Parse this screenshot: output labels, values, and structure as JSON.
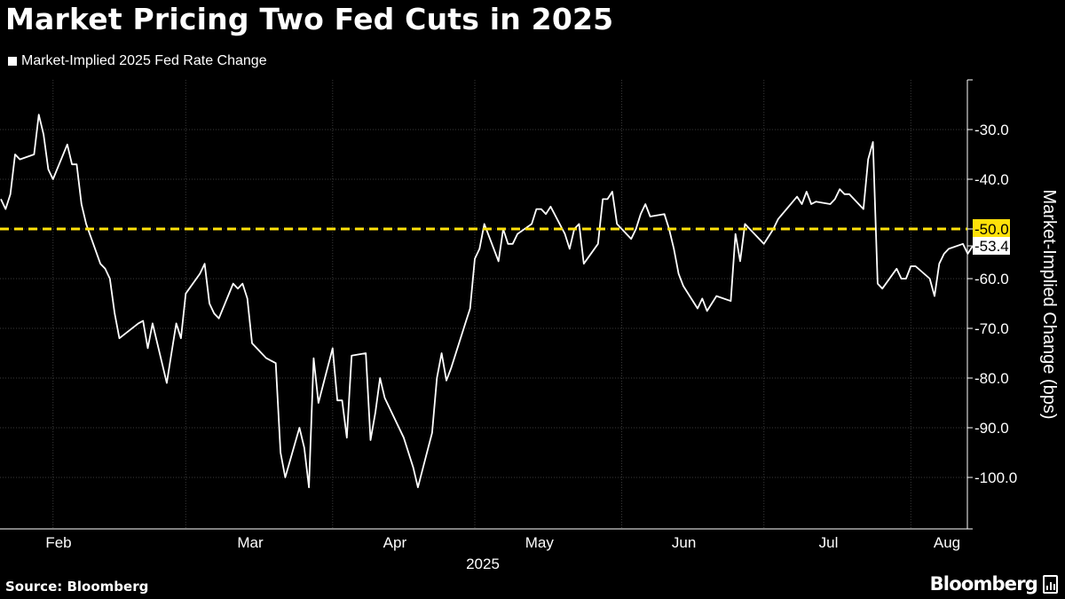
{
  "header": {
    "title": "Market Pricing Two Fed Cuts in 2025",
    "legend_label": "Market-Implied 2025 Fed Rate Change"
  },
  "footer": {
    "source": "Source: Bloomberg",
    "brand": "Bloomberg"
  },
  "colors": {
    "background": "#000000",
    "line": "#ffffff",
    "threshold": "#ffe10a",
    "grid": "#3a3a3a"
  },
  "chart_data": {
    "type": "line",
    "title": "Market Pricing Two Fed Cuts in 2025",
    "ylabel": "Market-Implied Change (bps)",
    "xlabel": "",
    "year_label": "2025",
    "y_axis_position": "right",
    "y_reversed": true,
    "ylim": [
      -20,
      -110
    ],
    "yticks": [
      -30,
      -40,
      -50,
      -60,
      -70,
      -80,
      -90,
      -100
    ],
    "ytick_labels": [
      "-30.0",
      "-40.0",
      "-50.0",
      "-60.0",
      "-70.0",
      "-80.0",
      "-90.0",
      "-100.0"
    ],
    "x_tick_labels": [
      "Feb",
      "Mar",
      "Apr",
      "May",
      "Jun",
      "Jul",
      "Aug"
    ],
    "x_month_boundaries": [
      "2025-01-31",
      "2025-02-28",
      "2025-03-31",
      "2025-04-30",
      "2025-05-31",
      "2025-06-30",
      "2025-07-31"
    ],
    "x_range": [
      "2025-01-20",
      "2025-08-19"
    ],
    "grid": true,
    "legend": "top-left",
    "series": [
      {
        "name": "Market-Implied 2025 Fed Rate Change",
        "last_value_label": "-53.4",
        "points": [
          [
            "2025-01-20",
            -44.0
          ],
          [
            "2025-01-21",
            -46.0
          ],
          [
            "2025-01-22",
            -43.0
          ],
          [
            "2025-01-23",
            -35.0
          ],
          [
            "2025-01-24",
            -36.0
          ],
          [
            "2025-01-27",
            -35.0
          ],
          [
            "2025-01-28",
            -27.0
          ],
          [
            "2025-01-29",
            -31.0
          ],
          [
            "2025-01-30",
            -38.0
          ],
          [
            "2025-01-31",
            -40.0
          ],
          [
            "2025-02-03",
            -33.0
          ],
          [
            "2025-02-04",
            -37.0
          ],
          [
            "2025-02-05",
            -37.0
          ],
          [
            "2025-02-06",
            -45.0
          ],
          [
            "2025-02-07",
            -49.0
          ],
          [
            "2025-02-10",
            -57.0
          ],
          [
            "2025-02-11",
            -58.0
          ],
          [
            "2025-02-12",
            -60.0
          ],
          [
            "2025-02-13",
            -67.0
          ],
          [
            "2025-02-14",
            -72.0
          ],
          [
            "2025-02-18",
            -69.0
          ],
          [
            "2025-02-19",
            -68.5
          ],
          [
            "2025-02-20",
            -74.0
          ],
          [
            "2025-02-21",
            -69.0
          ],
          [
            "2025-02-24",
            -81.0
          ],
          [
            "2025-02-25",
            -75.0
          ],
          [
            "2025-02-26",
            -69.0
          ],
          [
            "2025-02-27",
            -72.0
          ],
          [
            "2025-02-28",
            -63.0
          ],
          [
            "2025-03-03",
            -59.0
          ],
          [
            "2025-03-04",
            -57.0
          ],
          [
            "2025-03-05",
            -65.0
          ],
          [
            "2025-03-06",
            -67.0
          ],
          [
            "2025-03-07",
            -68.0
          ],
          [
            "2025-03-10",
            -61.0
          ],
          [
            "2025-03-11",
            -62.0
          ],
          [
            "2025-03-12",
            -61.0
          ],
          [
            "2025-03-13",
            -64.0
          ],
          [
            "2025-03-14",
            -73.0
          ],
          [
            "2025-03-17",
            -76.0
          ],
          [
            "2025-03-18",
            -76.5
          ],
          [
            "2025-03-19",
            -77.0
          ],
          [
            "2025-03-20",
            -95.0
          ],
          [
            "2025-03-21",
            -100.0
          ],
          [
            "2025-03-24",
            -90.0
          ],
          [
            "2025-03-25",
            -94.0
          ],
          [
            "2025-03-26",
            -102.0
          ],
          [
            "2025-03-27",
            -76.0
          ],
          [
            "2025-03-28",
            -85.0
          ],
          [
            "2025-03-31",
            -74.0
          ],
          [
            "2025-04-01",
            -84.5
          ],
          [
            "2025-04-02",
            -84.5
          ],
          [
            "2025-04-03",
            -92.0
          ],
          [
            "2025-04-04",
            -75.5
          ],
          [
            "2025-04-07",
            -75.0
          ],
          [
            "2025-04-08",
            -92.5
          ],
          [
            "2025-04-09",
            -87.0
          ],
          [
            "2025-04-10",
            -80.0
          ],
          [
            "2025-04-11",
            -84.0
          ],
          [
            "2025-04-15",
            -92.0
          ],
          [
            "2025-04-17",
            -98.0
          ],
          [
            "2025-04-18",
            -102.0
          ],
          [
            "2025-04-21",
            -91.0
          ],
          [
            "2025-04-22",
            -80.0
          ],
          [
            "2025-04-23",
            -75.0
          ],
          [
            "2025-04-24",
            -80.5
          ],
          [
            "2025-04-25",
            -78.0
          ],
          [
            "2025-04-28",
            -69.0
          ],
          [
            "2025-04-29",
            -66.0
          ],
          [
            "2025-04-30",
            -56.0
          ],
          [
            "2025-05-01",
            -54.0
          ],
          [
            "2025-05-02",
            -49.0
          ],
          [
            "2025-05-05",
            -56.5
          ],
          [
            "2025-05-06",
            -50.0
          ],
          [
            "2025-05-07",
            -53.0
          ],
          [
            "2025-05-08",
            -53.0
          ],
          [
            "2025-05-09",
            -51.0
          ],
          [
            "2025-05-12",
            -49.0
          ],
          [
            "2025-05-13",
            -46.0
          ],
          [
            "2025-05-14",
            -46.0
          ],
          [
            "2025-05-15",
            -47.0
          ],
          [
            "2025-05-16",
            -45.5
          ],
          [
            "2025-05-19",
            -51.0
          ],
          [
            "2025-05-20",
            -54.0
          ],
          [
            "2025-05-21",
            -50.0
          ],
          [
            "2025-05-22",
            -49.0
          ],
          [
            "2025-05-23",
            -57.0
          ],
          [
            "2025-05-26",
            -53.0
          ],
          [
            "2025-05-27",
            -44.0
          ],
          [
            "2025-05-28",
            -44.0
          ],
          [
            "2025-05-29",
            -42.5
          ],
          [
            "2025-05-30",
            -49.0
          ],
          [
            "2025-06-02",
            -52.0
          ],
          [
            "2025-06-03",
            -50.0
          ],
          [
            "2025-06-04",
            -47.0
          ],
          [
            "2025-06-05",
            -45.0
          ],
          [
            "2025-06-06",
            -47.5
          ],
          [
            "2025-06-09",
            -47.0
          ],
          [
            "2025-06-10",
            -50.0
          ],
          [
            "2025-06-11",
            -54.0
          ],
          [
            "2025-06-12",
            -59.0
          ],
          [
            "2025-06-13",
            -61.5
          ],
          [
            "2025-06-16",
            -66.0
          ],
          [
            "2025-06-17",
            -64.0
          ],
          [
            "2025-06-18",
            -66.5
          ],
          [
            "2025-06-20",
            -63.5
          ],
          [
            "2025-06-23",
            -64.5
          ],
          [
            "2025-06-24",
            -51.0
          ],
          [
            "2025-06-25",
            -56.5
          ],
          [
            "2025-06-26",
            -49.0
          ],
          [
            "2025-06-27",
            -50.0
          ],
          [
            "2025-06-30",
            -53.0
          ],
          [
            "2025-07-01",
            -51.5
          ],
          [
            "2025-07-02",
            -50.0
          ],
          [
            "2025-07-03",
            -48.0
          ],
          [
            "2025-07-07",
            -43.5
          ],
          [
            "2025-07-08",
            -45.0
          ],
          [
            "2025-07-09",
            -42.5
          ],
          [
            "2025-07-10",
            -45.0
          ],
          [
            "2025-07-11",
            -44.5
          ],
          [
            "2025-07-14",
            -45.0
          ],
          [
            "2025-07-15",
            -44.0
          ],
          [
            "2025-07-16",
            -42.0
          ],
          [
            "2025-07-17",
            -43.0
          ],
          [
            "2025-07-18",
            -43.0
          ],
          [
            "2025-07-21",
            -46.0
          ],
          [
            "2025-07-22",
            -36.0
          ],
          [
            "2025-07-23",
            -32.5
          ],
          [
            "2025-07-24",
            -61.0
          ],
          [
            "2025-07-25",
            -62.0
          ],
          [
            "2025-07-28",
            -58.0
          ],
          [
            "2025-07-29",
            -60.0
          ],
          [
            "2025-07-30",
            -60.0
          ],
          [
            "2025-07-31",
            -57.5
          ],
          [
            "2025-08-01",
            -57.5
          ],
          [
            "2025-08-04",
            -60.0
          ],
          [
            "2025-08-05",
            -63.5
          ],
          [
            "2025-08-06",
            -57.0
          ],
          [
            "2025-08-07",
            -55.0
          ],
          [
            "2025-08-08",
            -54.0
          ],
          [
            "2025-08-11",
            -53.0
          ],
          [
            "2025-08-12",
            -55.0
          ],
          [
            "2025-08-13",
            -53.5
          ],
          [
            "2025-08-15",
            -53.4
          ]
        ]
      }
    ],
    "reference_line": {
      "value": -50.0,
      "label": "-50.0",
      "style": "dashed"
    }
  }
}
